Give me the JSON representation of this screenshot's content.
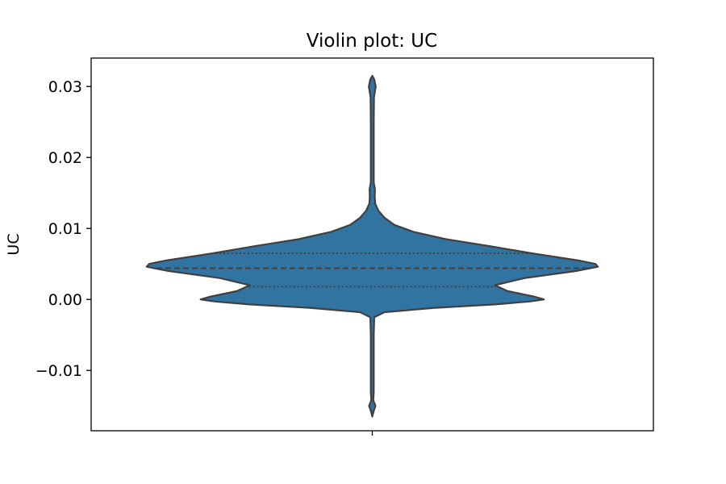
{
  "chart_data": {
    "type": "violin",
    "title": "Violin plot: UC",
    "xlabel": "",
    "ylabel": "UC",
    "ylim": [
      -0.0185,
      0.034
    ],
    "yticks": [
      -0.01,
      0.0,
      0.01,
      0.02,
      0.03
    ],
    "ytick_labels": [
      "−0.01",
      "0.00",
      "0.01",
      "0.02",
      "0.03"
    ],
    "xticks": [
      ""
    ],
    "grid": false,
    "fill_color": "#3274a1",
    "edge_color": "#3f3f3f",
    "quartiles": {
      "q1": 0.0018,
      "median": 0.0044,
      "q3": 0.0065
    },
    "range": {
      "min": -0.0165,
      "max": 0.0315
    },
    "density_profile": [
      {
        "y": -0.0165,
        "w": 0.0
      },
      {
        "y": -0.0158,
        "w": 0.005
      },
      {
        "y": -0.015,
        "w": 0.013
      },
      {
        "y": -0.0142,
        "w": 0.004
      },
      {
        "y": -0.013,
        "w": 0.006
      },
      {
        "y": -0.005,
        "w": 0.006
      },
      {
        "y": -0.0025,
        "w": 0.008
      },
      {
        "y": -0.0018,
        "w": 0.05
      },
      {
        "y": -0.0012,
        "w": 0.25
      },
      {
        "y": -0.0007,
        "w": 0.5
      },
      {
        "y": -0.0003,
        "w": 0.64
      },
      {
        "y": 0.0,
        "w": 0.7
      },
      {
        "y": 0.0004,
        "w": 0.66
      },
      {
        "y": 0.0012,
        "w": 0.55
      },
      {
        "y": 0.002,
        "w": 0.5
      },
      {
        "y": 0.003,
        "w": 0.62
      },
      {
        "y": 0.004,
        "w": 0.83
      },
      {
        "y": 0.0046,
        "w": 0.92
      },
      {
        "y": 0.005,
        "w": 0.91
      },
      {
        "y": 0.0055,
        "w": 0.84
      },
      {
        "y": 0.0065,
        "w": 0.65
      },
      {
        "y": 0.0075,
        "w": 0.48
      },
      {
        "y": 0.0085,
        "w": 0.3
      },
      {
        "y": 0.0095,
        "w": 0.17
      },
      {
        "y": 0.0105,
        "w": 0.09
      },
      {
        "y": 0.0115,
        "w": 0.05
      },
      {
        "y": 0.0125,
        "w": 0.025
      },
      {
        "y": 0.0135,
        "w": 0.012
      },
      {
        "y": 0.0145,
        "w": 0.01
      },
      {
        "y": 0.0155,
        "w": 0.011
      },
      {
        "y": 0.0165,
        "w": 0.006
      },
      {
        "y": 0.025,
        "w": 0.006
      },
      {
        "y": 0.0285,
        "w": 0.007
      },
      {
        "y": 0.03,
        "w": 0.014
      },
      {
        "y": 0.031,
        "w": 0.008
      },
      {
        "y": 0.0315,
        "w": 0.0
      }
    ]
  }
}
